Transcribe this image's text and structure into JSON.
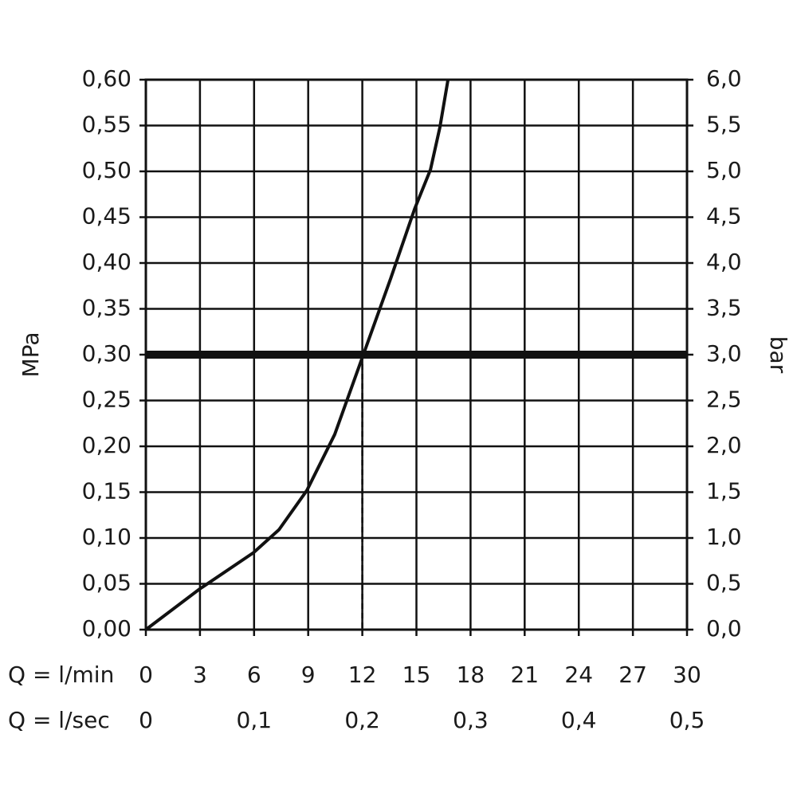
{
  "chart_data": {
    "type": "line",
    "xlabel": "Q = l/min",
    "x2label": "Q = l/sec",
    "ylabel": "MPa",
    "y2label": "bar",
    "x": [
      0,
      2.96,
      5.97,
      7.38,
      8.93,
      10.47,
      12.02,
      13.57,
      14.9,
      15.78,
      16.3,
      16.75
    ],
    "values": [
      0,
      0.044,
      0.084,
      0.109,
      0.152,
      0.213,
      0.298,
      0.383,
      0.459,
      0.502,
      0.548,
      0.6
    ],
    "color": "#111111",
    "xlim": [
      0,
      30
    ],
    "xticks": [
      0,
      3,
      6,
      9,
      12,
      15,
      18,
      21,
      24,
      27,
      30
    ],
    "x2lim": [
      0,
      0.5
    ],
    "x2ticks": [
      0,
      {
        "value": 0.1,
        "label": "0,1"
      },
      {
        "value": 0.2,
        "label": "0,2"
      },
      {
        "value": 0.3,
        "label": "0,3"
      },
      {
        "value": 0.4,
        "label": "0,4"
      },
      {
        "value": 0.5,
        "label": "0,5"
      }
    ],
    "ylim": [
      0,
      0.6
    ],
    "yticks": [
      {
        "value": 0,
        "label": "0,00"
      },
      {
        "value": 0.05,
        "label": "0,05"
      },
      {
        "value": 0.1,
        "label": "0,10"
      },
      {
        "value": 0.15,
        "label": "0,15"
      },
      {
        "value": 0.2,
        "label": "0,20"
      },
      {
        "value": 0.25,
        "label": "0,25"
      },
      {
        "value": 0.3,
        "label": "0,30"
      },
      {
        "value": 0.35,
        "label": "0,35"
      },
      {
        "value": 0.4,
        "label": "0,40"
      },
      {
        "value": 0.45,
        "label": "0,45"
      },
      {
        "value": 0.5,
        "label": "0,50"
      },
      {
        "value": 0.55,
        "label": "0,55"
      },
      {
        "value": 0.6,
        "label": "0,60"
      }
    ],
    "y2lim": [
      0,
      6
    ],
    "y2ticks": [
      {
        "value": 0,
        "label": "0,0"
      },
      {
        "value": 0.5,
        "label": "0,5"
      },
      {
        "value": 1,
        "label": "1,0"
      },
      {
        "value": 1.5,
        "label": "1,5"
      },
      {
        "value": 2,
        "label": "2,0"
      },
      {
        "value": 2.5,
        "label": "2,5"
      },
      {
        "value": 3,
        "label": "3,0"
      },
      {
        "value": 3.5,
        "label": "3,5"
      },
      {
        "value": 4,
        "label": "4,0"
      },
      {
        "value": 4.5,
        "label": "4,5"
      },
      {
        "value": 5,
        "label": "5,0"
      },
      {
        "value": 5.5,
        "label": "5,5"
      },
      {
        "value": 6,
        "label": "6,0"
      }
    ],
    "reference": {
      "y": 0.3,
      "x": 12
    },
    "grid": true
  }
}
